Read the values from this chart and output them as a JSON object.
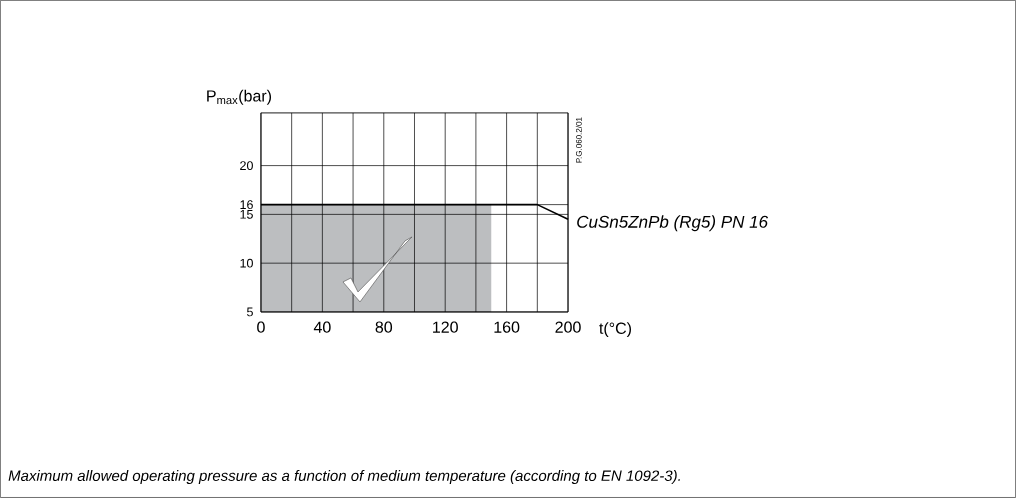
{
  "chart_data": {
    "type": "line",
    "xlabel": "t(°C)",
    "ylabel": "P$_{max}$(bar)",
    "series": [
      {
        "type": "area",
        "color": "#bcbec0",
        "x": [
          0,
          150
        ],
        "values": [
          16,
          16
        ]
      },
      {
        "name": "*CuSn5ZnPb (Rg5) PN 16*",
        "color": "#000000",
        "x": [
          0,
          180,
          200
        ],
        "values": [
          16,
          16,
          14.5
        ]
      }
    ],
    "xlim": [
      0,
      200
    ],
    "ylim": [
      5,
      25.4
    ],
    "xticks": [
      0,
      {
        "value": 20,
        "label": null
      },
      40,
      {
        "value": 60,
        "label": null
      },
      80,
      {
        "value": 100,
        "label": null
      },
      120,
      {
        "value": 140,
        "label": null
      },
      160,
      {
        "value": 180,
        "label": null
      },
      200
    ],
    "yticks": [
      5,
      10,
      15,
      16,
      20
    ],
    "grid": true,
    "annotations": [
      "P.G.060.2/01",
      "*Maximum allowed operating pressure as a function of medium temperature (according to EN 1092-3).*"
    ]
  }
}
